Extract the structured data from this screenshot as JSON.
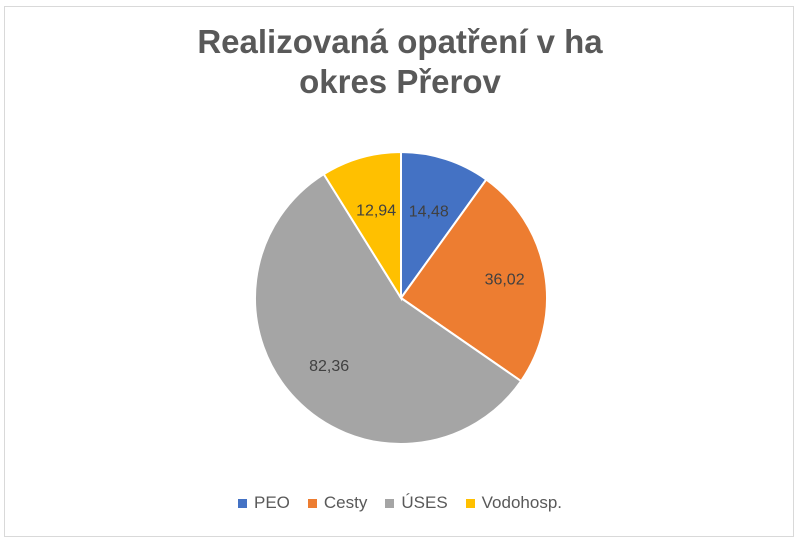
{
  "chart_data": {
    "type": "pie",
    "title_lines": [
      "Realizovaná opatření v ha",
      "okres Přerov"
    ],
    "categories": [
      "PEO",
      "Cesty",
      "ÚSES",
      "Vodohosp."
    ],
    "values": [
      14.48,
      36.02,
      82.36,
      12.94
    ],
    "value_labels": [
      "14,48",
      "36,02",
      "82,36",
      "12,94"
    ],
    "colors": [
      "#4472c4",
      "#ed7d31",
      "#a5a5a5",
      "#ffc000"
    ],
    "legend_position": "bottom",
    "start_angle": "12 o'clock, clockwise"
  }
}
